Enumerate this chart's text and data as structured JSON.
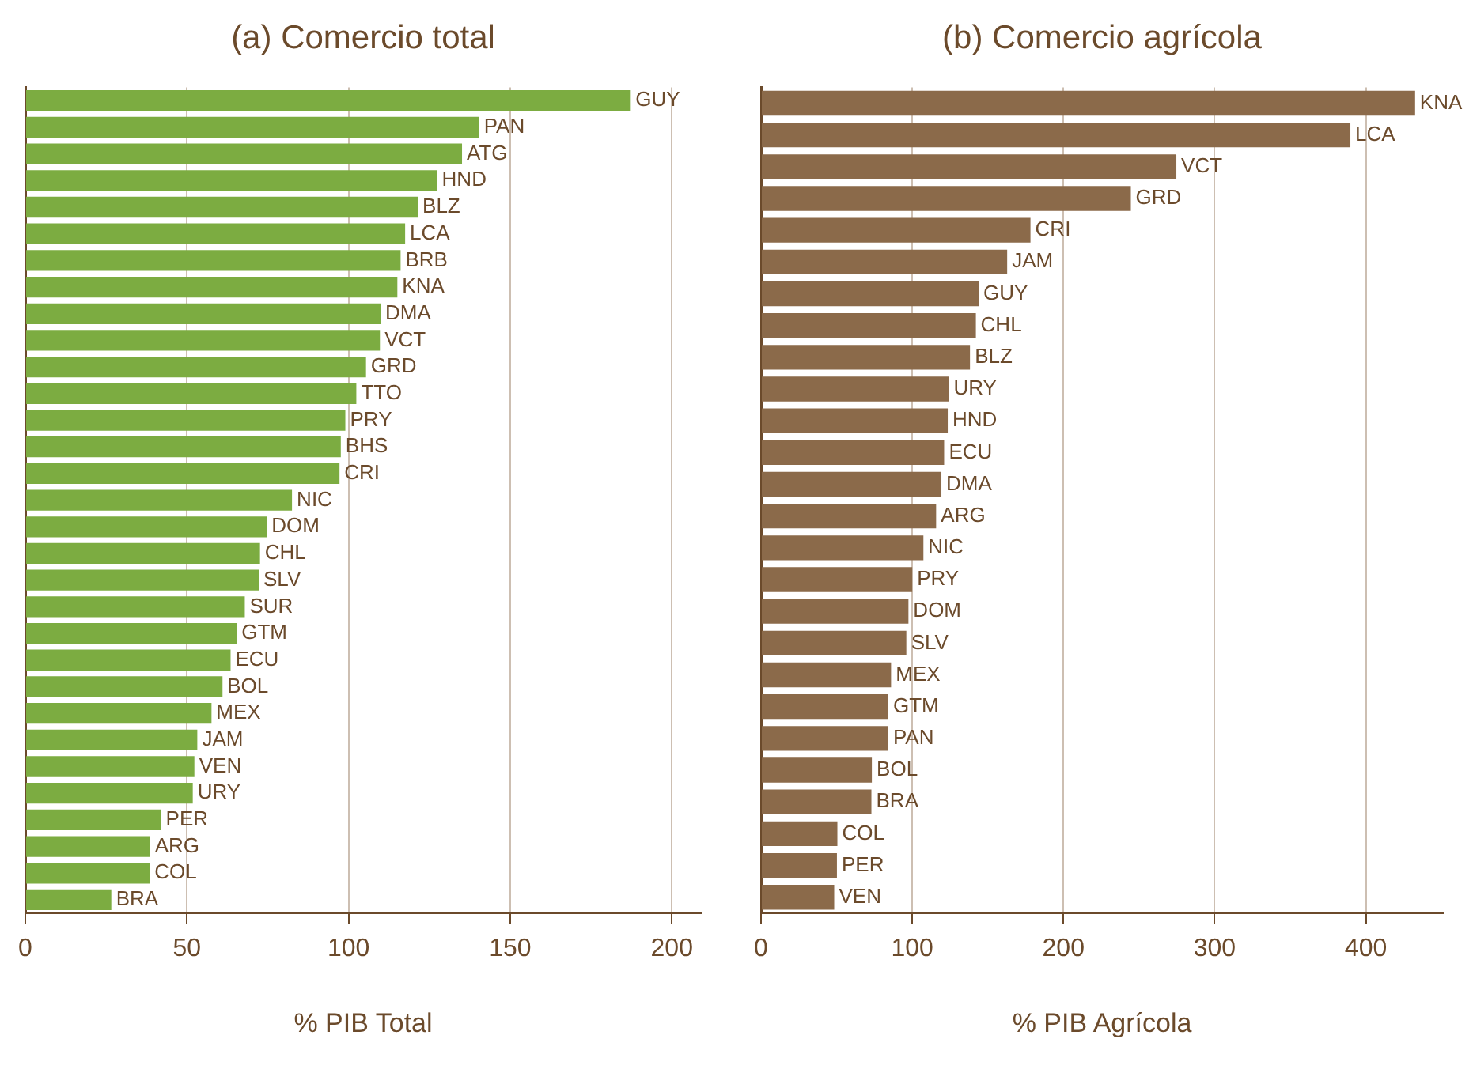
{
  "chart_data": [
    {
      "type": "bar",
      "orientation": "horizontal",
      "title": "(a) Comercio total",
      "xlabel": "% PIB Total",
      "color": "#7cac41",
      "grid": "x",
      "xlim": [
        0,
        209
      ],
      "xticks": [
        0,
        50,
        100,
        150,
        200
      ],
      "categories": [
        "GUY",
        "PAN",
        "ATG",
        "HND",
        "BLZ",
        "LCA",
        "BRB",
        "KNA",
        "DMA",
        "VCT",
        "GRD",
        "TTO",
        "PRY",
        "BHS",
        "CRI",
        "NIC",
        "DOM",
        "CHL",
        "SLV",
        "SUR",
        "GTM",
        "ECU",
        "BOL",
        "MEX",
        "JAM",
        "VEN",
        "URY",
        "PER",
        "ARG",
        "COL",
        "BRA"
      ],
      "values": [
        187.3,
        140.4,
        135.1,
        127.4,
        121.4,
        117.5,
        116.1,
        115.1,
        109.9,
        109.7,
        105.4,
        102.4,
        99.0,
        97.6,
        97.2,
        82.5,
        74.7,
        72.6,
        72.2,
        67.9,
        65.4,
        63.5,
        61.0,
        57.6,
        53.2,
        52.3,
        51.8,
        42.0,
        38.6,
        38.5,
        26.6
      ]
    },
    {
      "type": "bar",
      "orientation": "horizontal",
      "title": "(b) Comercio agrícola",
      "xlabel": "% PIB Agrícola",
      "color": "#8b6a4a",
      "grid": "x",
      "xlim": [
        0,
        451
      ],
      "xticks": [
        0,
        100,
        200,
        300,
        400
      ],
      "categories": [
        "KNA",
        "LCA",
        "VCT",
        "GRD",
        "CRI",
        "JAM",
        "GUY",
        "CHL",
        "BLZ",
        "URY",
        "HND",
        "ECU",
        "DMA",
        "ARG",
        "NIC",
        "PRY",
        "DOM",
        "SLV",
        "MEX",
        "GTM",
        "PAN",
        "BOL",
        "BRA",
        "COL",
        "PER",
        "VEN"
      ],
      "values": [
        432.6,
        389.8,
        274.7,
        244.6,
        178.2,
        162.8,
        143.9,
        142.1,
        138.2,
        124.2,
        123.5,
        121.1,
        119.3,
        115.8,
        107.4,
        100.0,
        97.5,
        96.1,
        86.0,
        84.2,
        84.2,
        73.3,
        73.0,
        50.5,
        50.2,
        48.4
      ]
    }
  ]
}
